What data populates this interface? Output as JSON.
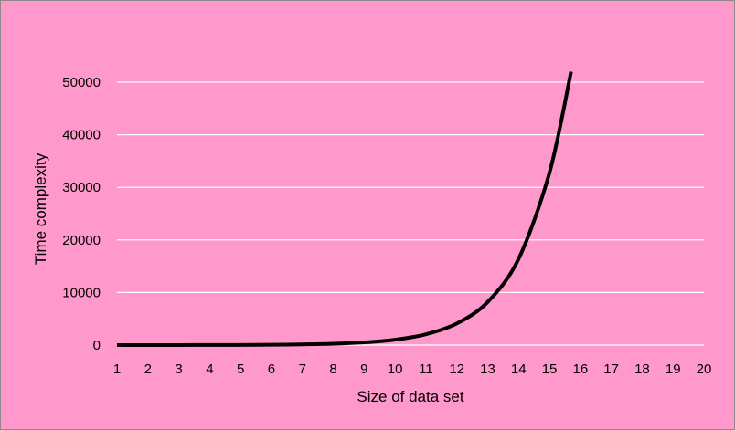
{
  "chart_data": {
    "type": "line",
    "title": "",
    "xlabel": "Size of data set",
    "ylabel": "Time complexity",
    "x_ticks": [
      "1",
      "2",
      "3",
      "4",
      "5",
      "6",
      "7",
      "8",
      "9",
      "10",
      "11",
      "12",
      "13",
      "14",
      "15",
      "16",
      "17",
      "18",
      "19",
      "20"
    ],
    "y_ticks": [
      "0",
      "10000",
      "20000",
      "30000",
      "40000",
      "50000"
    ],
    "xlim": [
      1,
      20
    ],
    "ylim": [
      0,
      52000
    ],
    "grid": "horizontal",
    "legend": "none",
    "series": [
      {
        "x": [
          1,
          2,
          3,
          4,
          5,
          6,
          7,
          8,
          9,
          10,
          11,
          12,
          13,
          14,
          15,
          15.7
        ],
        "y": [
          2,
          4,
          8,
          16,
          32,
          64,
          128,
          256,
          512,
          1024,
          2048,
          4096,
          8192,
          16384,
          32768,
          52000
        ],
        "color": "#000000"
      }
    ],
    "colors": {
      "background": "#ff99cc",
      "gridline": "#ffffff",
      "line": "#000000"
    }
  }
}
